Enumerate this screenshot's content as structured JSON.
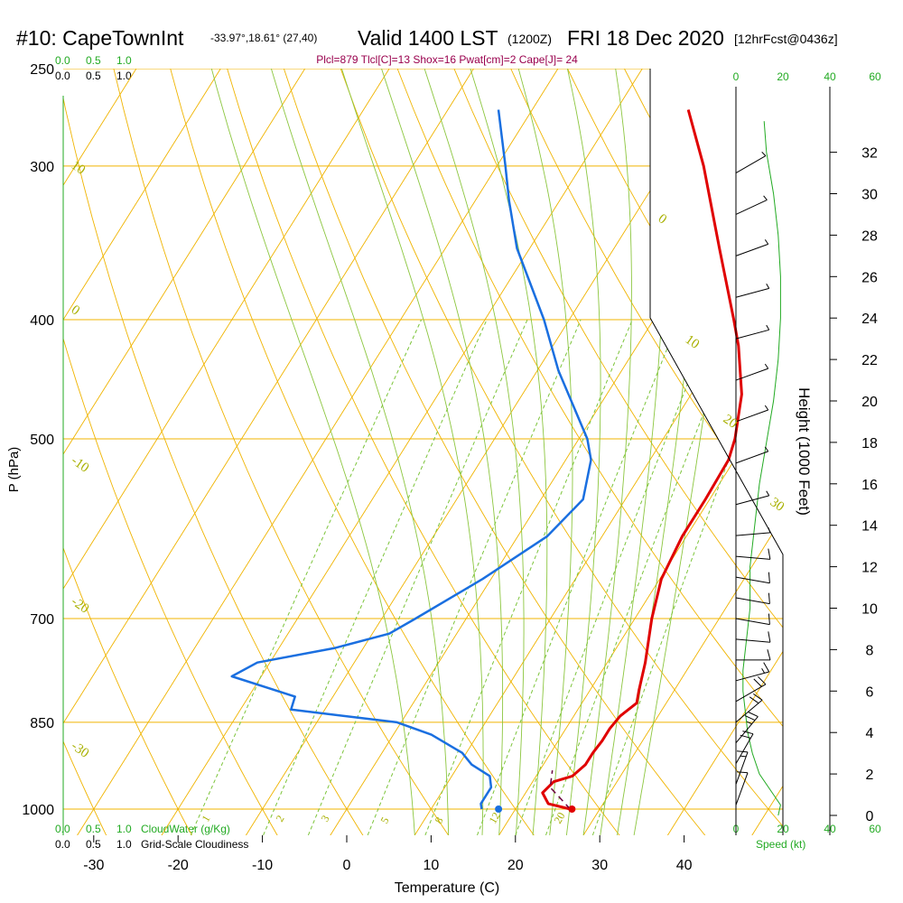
{
  "header": {
    "station": "#10: CapeTownInt",
    "coords": "-33.97°,18.61° (27,40)",
    "valid": "Valid 1400 LST",
    "zulu": "(1200Z)",
    "date": "FRI 18 Dec 2020",
    "forecast": "[12hrFcst@0436z]",
    "params": "Plcl=879 Tlcl[C]=13 Shox=16 Pwat[cm]=2 Cape[J]= 24"
  },
  "colors": {
    "temperature": "#e00000",
    "dewpoint": "#1a6fe0",
    "isotherm": "#f0b400",
    "dry_adiabat": "#8cc63f",
    "moist_adiabat": "#a8b000",
    "mixing_ratio": "#7cc43a",
    "green_text": "#22aa22",
    "params_text": "#99004d"
  },
  "scales": {
    "cloudwater_top": [
      "0.0",
      "0.5",
      "1.0"
    ],
    "cloudiness_top": [
      "0.0",
      "0.5",
      "1.0"
    ],
    "cloudwater_bottom": [
      "0.0",
      "0.5",
      "1.0"
    ],
    "cloudwater_label": "CloudWater (g/Kg)",
    "cloudiness_bottom": [
      "0.0",
      "0.5",
      "1.0"
    ],
    "cloudiness_label": "Grid-Scale Cloudiness",
    "speed_ticks": [
      "0",
      "20",
      "40",
      "60"
    ],
    "speed_label": "Speed (kt)"
  },
  "chart_data": {
    "type": "line",
    "title": "#10: CapeTownInt Valid 1400 LST (1200Z) FRI 18 Dec 2020",
    "xlabel": "Temperature (C)",
    "ylabel": "P (hPa)",
    "y2label": "Height (1000 Feet)",
    "x_ticks": [
      -30,
      -20,
      -10,
      0,
      10,
      20,
      30,
      40
    ],
    "p_ticks": [
      250,
      300,
      400,
      500,
      700,
      850,
      1000
    ],
    "height_ticks": [
      0,
      2,
      4,
      6,
      8,
      10,
      12,
      14,
      16,
      18,
      20,
      22,
      24,
      26,
      28,
      30,
      32
    ],
    "dry_adiabat_labels": [
      "10",
      "0",
      "-10",
      "-20",
      "-30",
      "0",
      "10",
      "20",
      "30"
    ],
    "mixing_ratio_labels": [
      "1",
      "2",
      "3",
      "5",
      "8",
      "12",
      "20"
    ],
    "series": [
      {
        "name": "Temperature",
        "points": [
          [
            1000,
            26.5
          ],
          [
            990,
            23.5
          ],
          [
            970,
            22.0
          ],
          [
            950,
            22.5
          ],
          [
            940,
            24.3
          ],
          [
            920,
            25.0
          ],
          [
            900,
            25.0
          ],
          [
            880,
            25.2
          ],
          [
            860,
            25.2
          ],
          [
            840,
            25.5
          ],
          [
            820,
            26.5
          ],
          [
            800,
            25.8
          ],
          [
            760,
            24.5
          ],
          [
            700,
            22.0
          ],
          [
            650,
            20.2
          ],
          [
            600,
            19.5
          ],
          [
            560,
            19.5
          ],
          [
            520,
            19.3
          ],
          [
            500,
            18.5
          ],
          [
            460,
            16.0
          ],
          [
            420,
            12.0
          ],
          [
            400,
            9.5
          ],
          [
            350,
            2.5
          ],
          [
            300,
            -5.5
          ],
          [
            270,
            -11.5
          ]
        ]
      },
      {
        "name": "Dewpoint",
        "points": [
          [
            1000,
            16.0
          ],
          [
            990,
            15.5
          ],
          [
            960,
            15.5
          ],
          [
            940,
            14.5
          ],
          [
            920,
            11.5
          ],
          [
            900,
            9.5
          ],
          [
            870,
            4.5
          ],
          [
            850,
            -0.5
          ],
          [
            830,
            -14.0
          ],
          [
            810,
            -14.5
          ],
          [
            780,
            -23.5
          ],
          [
            760,
            -21.5
          ],
          [
            740,
            -13.5
          ],
          [
            720,
            -8.0
          ],
          [
            700,
            -6.0
          ],
          [
            650,
            -1.0
          ],
          [
            600,
            3.5
          ],
          [
            560,
            5.0
          ],
          [
            520,
            3.0
          ],
          [
            500,
            1.0
          ],
          [
            440,
            -7.5
          ],
          [
            400,
            -13.0
          ],
          [
            350,
            -21.5
          ],
          [
            320,
            -26.0
          ],
          [
            300,
            -29.0
          ],
          [
            270,
            -34.0
          ]
        ]
      },
      {
        "name": "Parcel",
        "points": [
          [
            1000,
            26.5
          ],
          [
            960,
            22.5
          ],
          [
            930,
            21.5
          ]
        ]
      }
    ],
    "surface_markers": {
      "temperature": 26.7,
      "dewpoint": 18.0
    },
    "winds": [
      {
        "h": 0.5,
        "spd": 10,
        "dir": 200
      },
      {
        "h": 1.5,
        "spd": 15,
        "dir": 200
      },
      {
        "h": 2.5,
        "spd": 20,
        "dir": 210
      },
      {
        "h": 3.5,
        "spd": 25,
        "dir": 220
      },
      {
        "h": 4.5,
        "spd": 20,
        "dir": 230
      },
      {
        "h": 5.5,
        "spd": 18,
        "dir": 240
      },
      {
        "h": 6.5,
        "spd": 15,
        "dir": 255
      },
      {
        "h": 7.5,
        "spd": 12,
        "dir": 270
      },
      {
        "h": 8.5,
        "spd": 10,
        "dir": 275
      },
      {
        "h": 9.5,
        "spd": 8,
        "dir": 280
      },
      {
        "h": 10.5,
        "spd": 10,
        "dir": 280
      },
      {
        "h": 11.5,
        "spd": 10,
        "dir": 280
      },
      {
        "h": 12.5,
        "spd": 8,
        "dir": 275
      },
      {
        "h": 13.5,
        "spd": 6,
        "dir": 265
      },
      {
        "h": 15,
        "spd": 5,
        "dir": 255
      },
      {
        "h": 17,
        "spd": 5,
        "dir": 250
      },
      {
        "h": 19,
        "spd": 5,
        "dir": 250
      },
      {
        "h": 21,
        "spd": 5,
        "dir": 250
      },
      {
        "h": 23,
        "spd": 5,
        "dir": 255
      },
      {
        "h": 25,
        "spd": 5,
        "dir": 255
      },
      {
        "h": 27,
        "spd": 5,
        "dir": 250
      },
      {
        "h": 29,
        "spd": 5,
        "dir": 245
      },
      {
        "h": 31,
        "spd": 5,
        "dir": 240
      }
    ],
    "wind_speed_profile": [
      [
        0,
        18
      ],
      [
        0.5,
        19
      ],
      [
        1,
        16
      ],
      [
        2,
        10
      ],
      [
        3,
        7
      ],
      [
        4,
        5
      ],
      [
        5,
        4
      ],
      [
        6,
        3
      ],
      [
        7,
        3
      ],
      [
        8,
        4
      ],
      [
        9,
        5
      ],
      [
        10,
        6
      ],
      [
        11,
        6
      ],
      [
        12,
        6
      ],
      [
        14,
        8
      ],
      [
        16,
        10
      ],
      [
        18,
        13
      ],
      [
        20,
        16
      ],
      [
        22,
        18
      ],
      [
        24,
        19
      ],
      [
        26,
        19
      ],
      [
        28,
        18
      ],
      [
        30,
        16
      ],
      [
        32,
        13
      ],
      [
        33.5,
        12
      ]
    ]
  }
}
